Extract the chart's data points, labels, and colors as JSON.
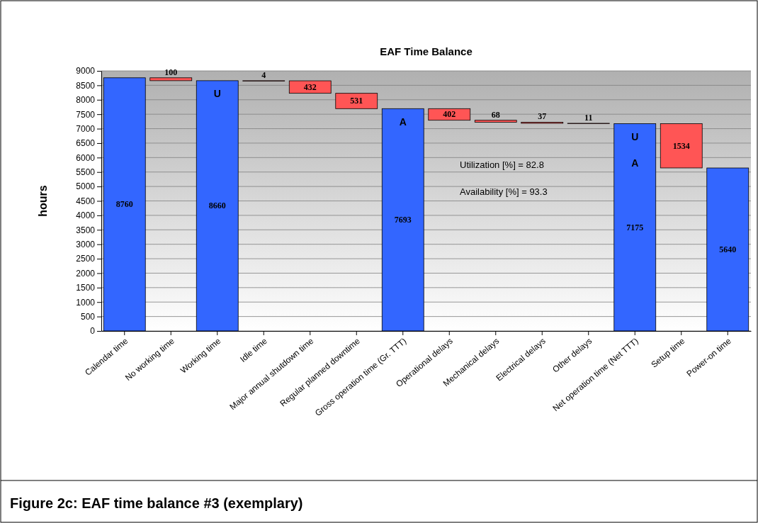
{
  "chart_data": {
    "type": "bar",
    "title": "EAF Time Balance",
    "ylabel": "hours",
    "categories": [
      "Calendar time",
      "No working time",
      "Working time",
      "Idle time",
      "Major annual shutdown time",
      "Regular planned downtime",
      "Gross operation time (Gr. TTT)",
      "Operational delays",
      "Mechanical delays",
      "Electrical delays",
      "Other delays",
      "Net operation time (Net TTT)",
      "Setup time",
      "Power-on time"
    ],
    "values": [
      8760,
      100,
      8660,
      4,
      432,
      531,
      7693,
      402,
      68,
      37,
      11,
      7175,
      1534,
      5640
    ],
    "base": [
      0,
      8660,
      0,
      8656,
      8224,
      7693,
      0,
      7291,
      7223,
      7186,
      7175,
      0,
      5641,
      0
    ],
    "colors": [
      "#3366ff",
      "#ff5555",
      "#3366ff",
      "#ff5555",
      "#ff5555",
      "#ff5555",
      "#3366ff",
      "#ff5555",
      "#ff5555",
      "#ff5555",
      "#ff5555",
      "#3366ff",
      "#ff5555",
      "#3366ff"
    ],
    "ylim": [
      0,
      9000
    ],
    "yticks": [
      0,
      500,
      1000,
      1500,
      2000,
      2500,
      3000,
      3500,
      4000,
      4500,
      5000,
      5500,
      6000,
      6500,
      7000,
      7500,
      8000,
      8500,
      9000
    ],
    "grid": "y",
    "data_labels": true,
    "annotations": [
      "U",
      "A",
      "U",
      "A",
      "Utilization [%] =  82.8",
      "Availability [%] = 93.3",
      "Figure 2c: EAF time balance #3 (exemplary)"
    ]
  }
}
